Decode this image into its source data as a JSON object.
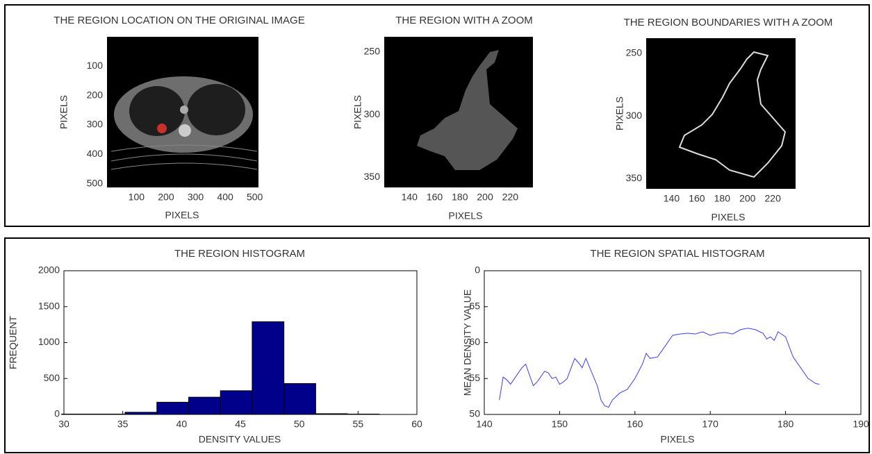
{
  "chart_data": [
    {
      "type": "image",
      "title": "THE REGION LOCATION ON THE ORIGINAL IMAGE",
      "xlabel": "PIXELS",
      "ylabel": "PIXELS",
      "xlim": [
        0.5,
        512.5
      ],
      "ylim": [
        512.5,
        0.5
      ],
      "xticks": [
        100,
        200,
        300,
        400,
        500
      ],
      "yticks": [
        100,
        200,
        300,
        400,
        500
      ]
    },
    {
      "type": "image",
      "title": "THE REGION WITH A ZOOM",
      "xlabel": "PIXELS",
      "ylabel": "PIXELS",
      "xlim": [
        120,
        238
      ],
      "ylim": [
        358,
        238
      ],
      "xticks": [
        140,
        160,
        180,
        200,
        220
      ],
      "yticks": [
        250,
        300,
        350
      ]
    },
    {
      "type": "image",
      "title": "THE REGION BOUNDARIES WITH A ZOOM",
      "xlabel": "PIXELS",
      "ylabel": "PIXELS",
      "xlim": [
        120,
        238
      ],
      "ylim": [
        358,
        238
      ],
      "xticks": [
        140,
        160,
        180,
        200,
        220
      ],
      "yticks": [
        250,
        300,
        350
      ]
    },
    {
      "type": "histogram",
      "title": "THE REGION HISTOGRAM",
      "xlabel": "DENSITY VALUES",
      "ylabel": "FREQUENT",
      "bins": [
        29.8,
        32.5,
        35.2,
        37.9,
        40.6,
        43.3,
        46.0,
        48.7,
        51.4,
        54.1,
        56.8
      ],
      "values": [
        5,
        5,
        30,
        170,
        240,
        330,
        1290,
        430,
        10,
        5
      ],
      "color": "#00008b",
      "xlim": [
        30,
        60
      ],
      "ylim": [
        0,
        2000
      ],
      "xticks": [
        30,
        35,
        40,
        45,
        50,
        55,
        60
      ],
      "yticks": [
        0,
        500,
        1000,
        1500,
        2000
      ]
    },
    {
      "type": "line",
      "title": "THE REGION SPATIAL HISTOGRAM",
      "xlabel": "PIXELS",
      "ylabel": "MEAN DENSITY VALUE",
      "x": [
        142,
        142.5,
        143,
        143.5,
        144,
        145,
        145.5,
        146,
        146.5,
        147,
        148,
        148.5,
        149,
        149.5,
        150,
        150.5,
        151,
        152,
        152.5,
        153,
        153.5,
        154,
        155,
        155.5,
        156,
        156.5,
        157,
        158,
        159,
        160,
        161,
        161.5,
        162,
        163,
        164,
        165,
        166,
        167,
        168,
        169,
        170,
        171,
        172,
        173,
        174,
        175,
        176,
        177,
        177.5,
        178,
        178.5,
        179,
        180,
        181,
        182,
        183,
        184,
        184.5
      ],
      "values": [
        52,
        55.2,
        54.8,
        54.2,
        55,
        56.5,
        57,
        55.5,
        54,
        54.5,
        56,
        55.8,
        55,
        55.2,
        54.2,
        54.5,
        55,
        57.8,
        57.2,
        56.5,
        57.8,
        56.5,
        54,
        52,
        51.2,
        51,
        52,
        53,
        53.5,
        55,
        57,
        58.5,
        57.8,
        58,
        59.5,
        61,
        61.2,
        61.3,
        61.2,
        61.5,
        61,
        61.3,
        61.4,
        61.2,
        61.8,
        62,
        61.8,
        61.3,
        60.5,
        60.8,
        60.3,
        61.5,
        60.8,
        58,
        56.5,
        55,
        54.3,
        54.2
      ],
      "color": "#3b3bff",
      "xlim": [
        140,
        190
      ],
      "ylim": [
        50,
        70
      ],
      "xticks": [
        140,
        150,
        160,
        170,
        180,
        190
      ],
      "yticks": [
        50,
        55,
        60,
        65,
        {
          "value": 70,
          "label": "0"
        }
      ]
    }
  ]
}
